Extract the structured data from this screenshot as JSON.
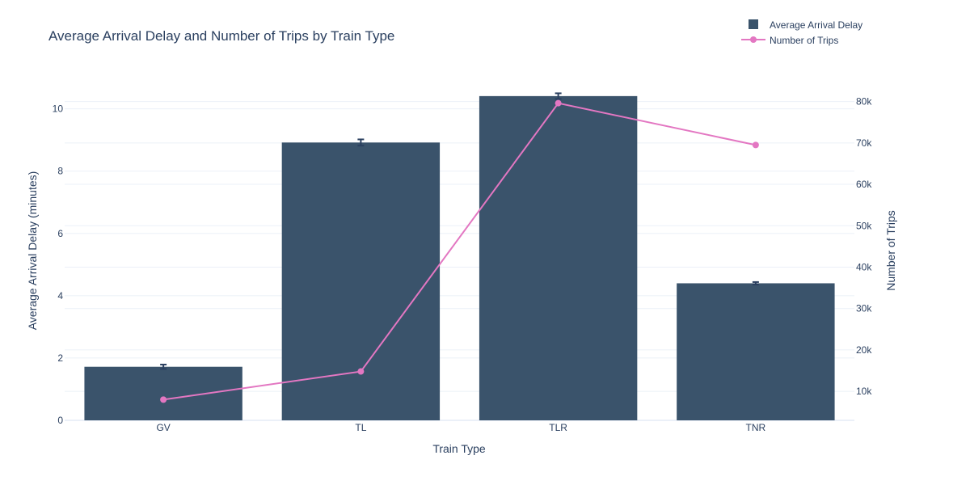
{
  "chart_data": {
    "type": "bar",
    "title": "Average Arrival Delay and Number of Trips by Train Type",
    "xlabel": "Train Type",
    "ylabel": "Average Arrival Delay (minutes)",
    "y2label": "Number of Trips",
    "categories": [
      "GV",
      "TL",
      "TLR",
      "TNR"
    ],
    "ylim": [
      0,
      10.9
    ],
    "y2lim": [
      3000,
      85000
    ],
    "yticks": [
      0,
      2,
      4,
      6,
      8,
      10
    ],
    "y2ticks": [
      10000,
      20000,
      30000,
      40000,
      50000,
      60000,
      70000,
      80000
    ],
    "y2tick_labels": [
      "10k",
      "20k",
      "30k",
      "40k",
      "50k",
      "60k",
      "70k",
      "80k"
    ],
    "grid": true,
    "legend_position": "top-right",
    "series": [
      {
        "name": "Average Arrival Delay",
        "type": "bar",
        "axis": "left",
        "color": "#3a536b",
        "values": [
          1.72,
          8.92,
          10.41,
          4.4
        ],
        "error": [
          0.07,
          0.1,
          0.09,
          0.04
        ]
      },
      {
        "name": "Number of Trips",
        "type": "line",
        "axis": "right",
        "color": "#e377c2",
        "values": [
          8000,
          14800,
          79600,
          69500
        ]
      }
    ]
  }
}
